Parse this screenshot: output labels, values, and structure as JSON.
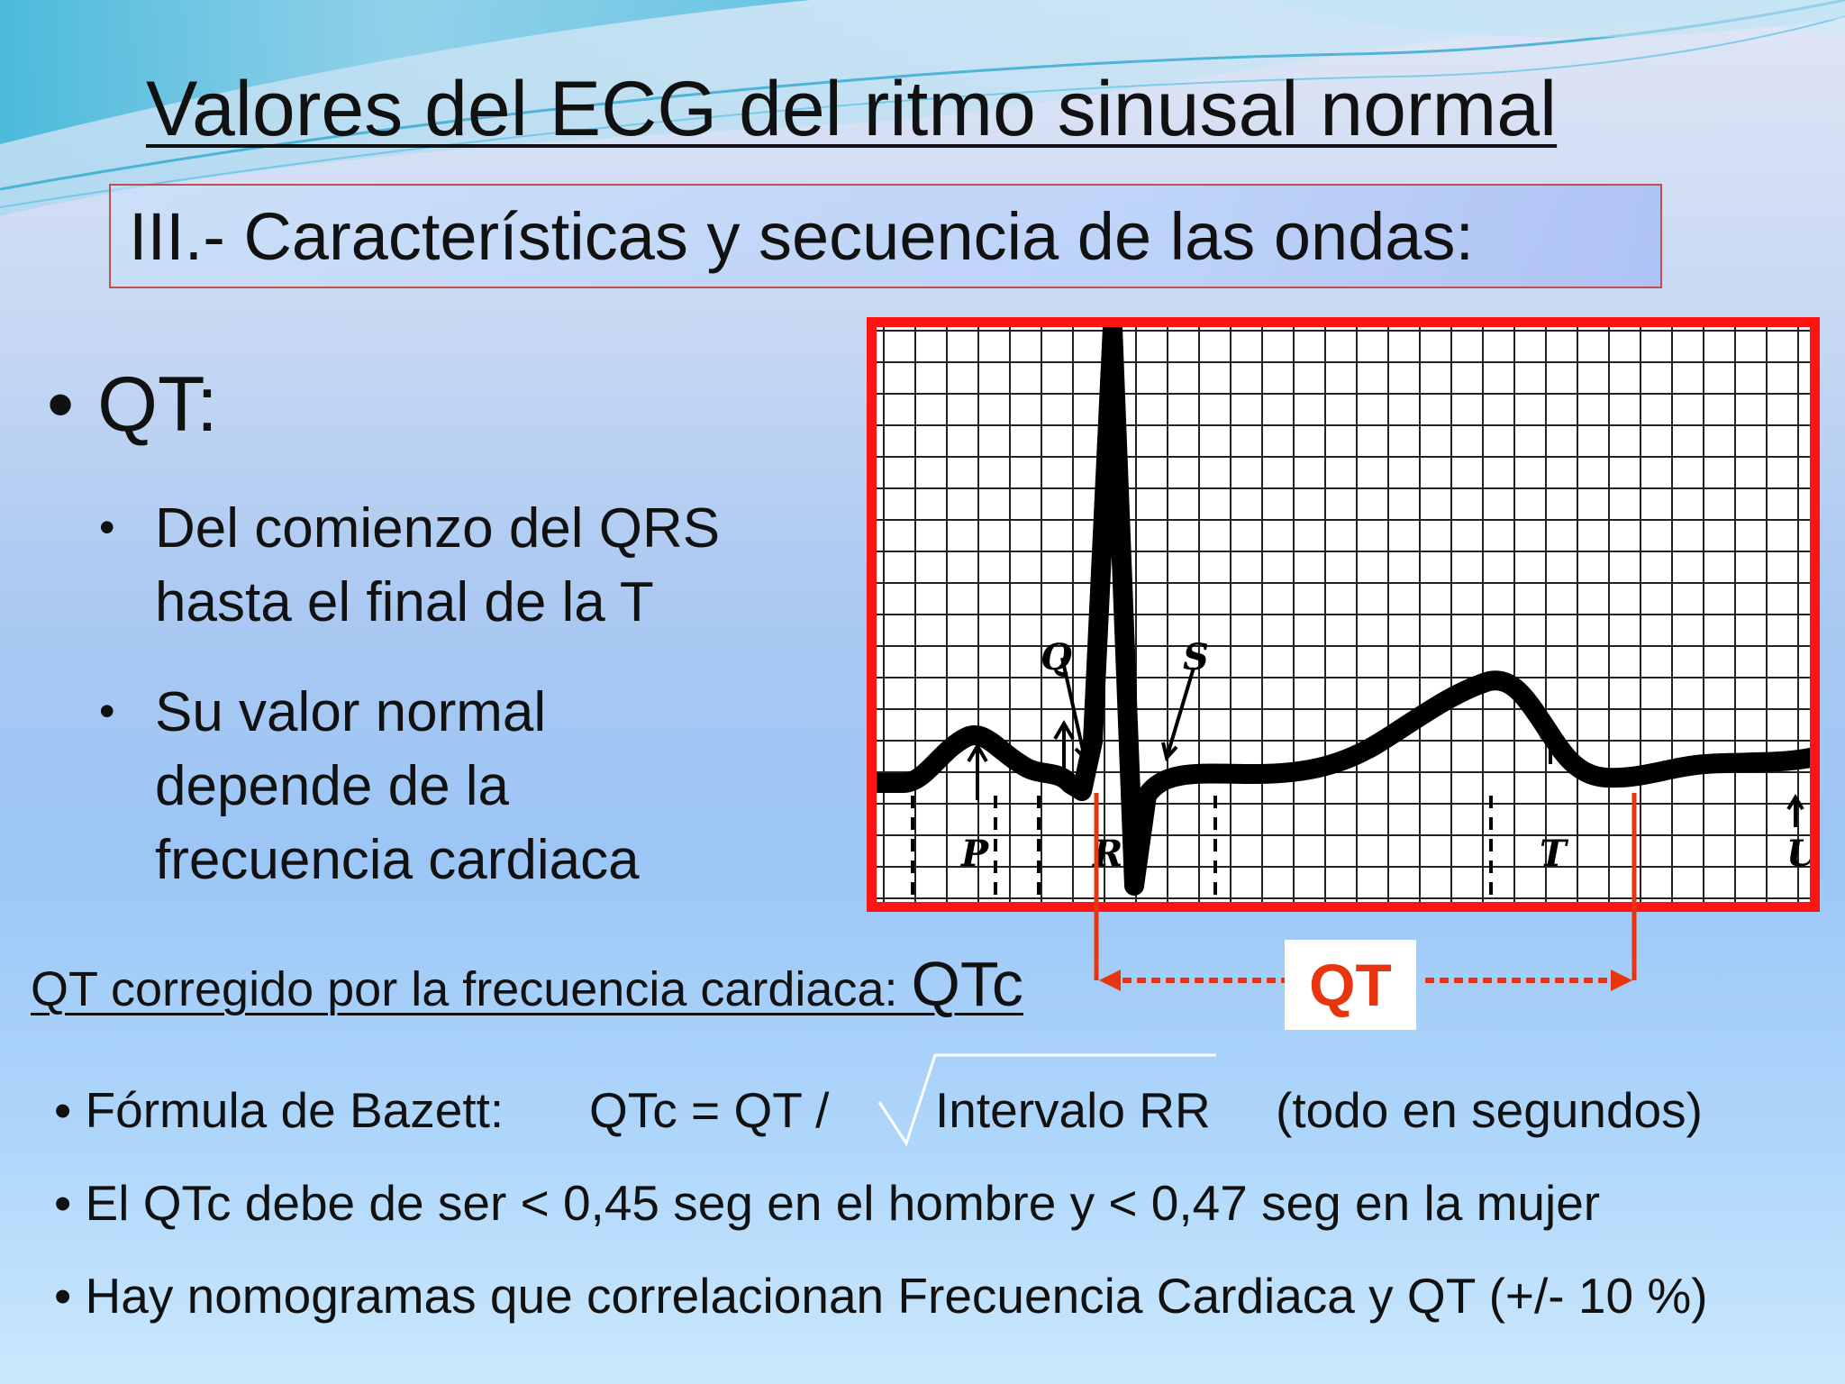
{
  "title": "Valores del ECG del ritmo sinusal normal",
  "subtitle": "III.- Características y secuencia de las ondas:",
  "qt_section": {
    "bullet": "•",
    "heading": "QT:",
    "sub_bullets": [
      {
        "lines": [
          "Del comienzo del QRS",
          "hasta el final de la T"
        ]
      },
      {
        "lines": [
          "Su valor normal",
          "depende de la",
          "frecuencia cardiaca"
        ]
      }
    ]
  },
  "ecg_diagram": {
    "wave_labels": [
      "P",
      "Q",
      "R",
      "S",
      "T",
      "U"
    ],
    "interval_label": "QT",
    "colors": {
      "frame": "#ff1414",
      "interval_marker": "#e8350f",
      "grid": "#222222",
      "trace": "#000000"
    }
  },
  "qtc": {
    "heading_text": "QT corregido por la frecuencia cardiaca: ",
    "heading_big": "QTc"
  },
  "formulas": {
    "bazett_label": "Fórmula de Bazett:",
    "bazett_expr": "QTc = QT /",
    "bazett_radicand": "Intervalo RR",
    "bazett_note": "(todo en segundos)",
    "line2": "El QTc debe de ser <  0,45 seg en el hombre y < 0,47 seg en la mujer",
    "line3": "Hay nomogramas que correlacionan Frecuencia Cardiaca  y QT (+/- 10 %)"
  }
}
